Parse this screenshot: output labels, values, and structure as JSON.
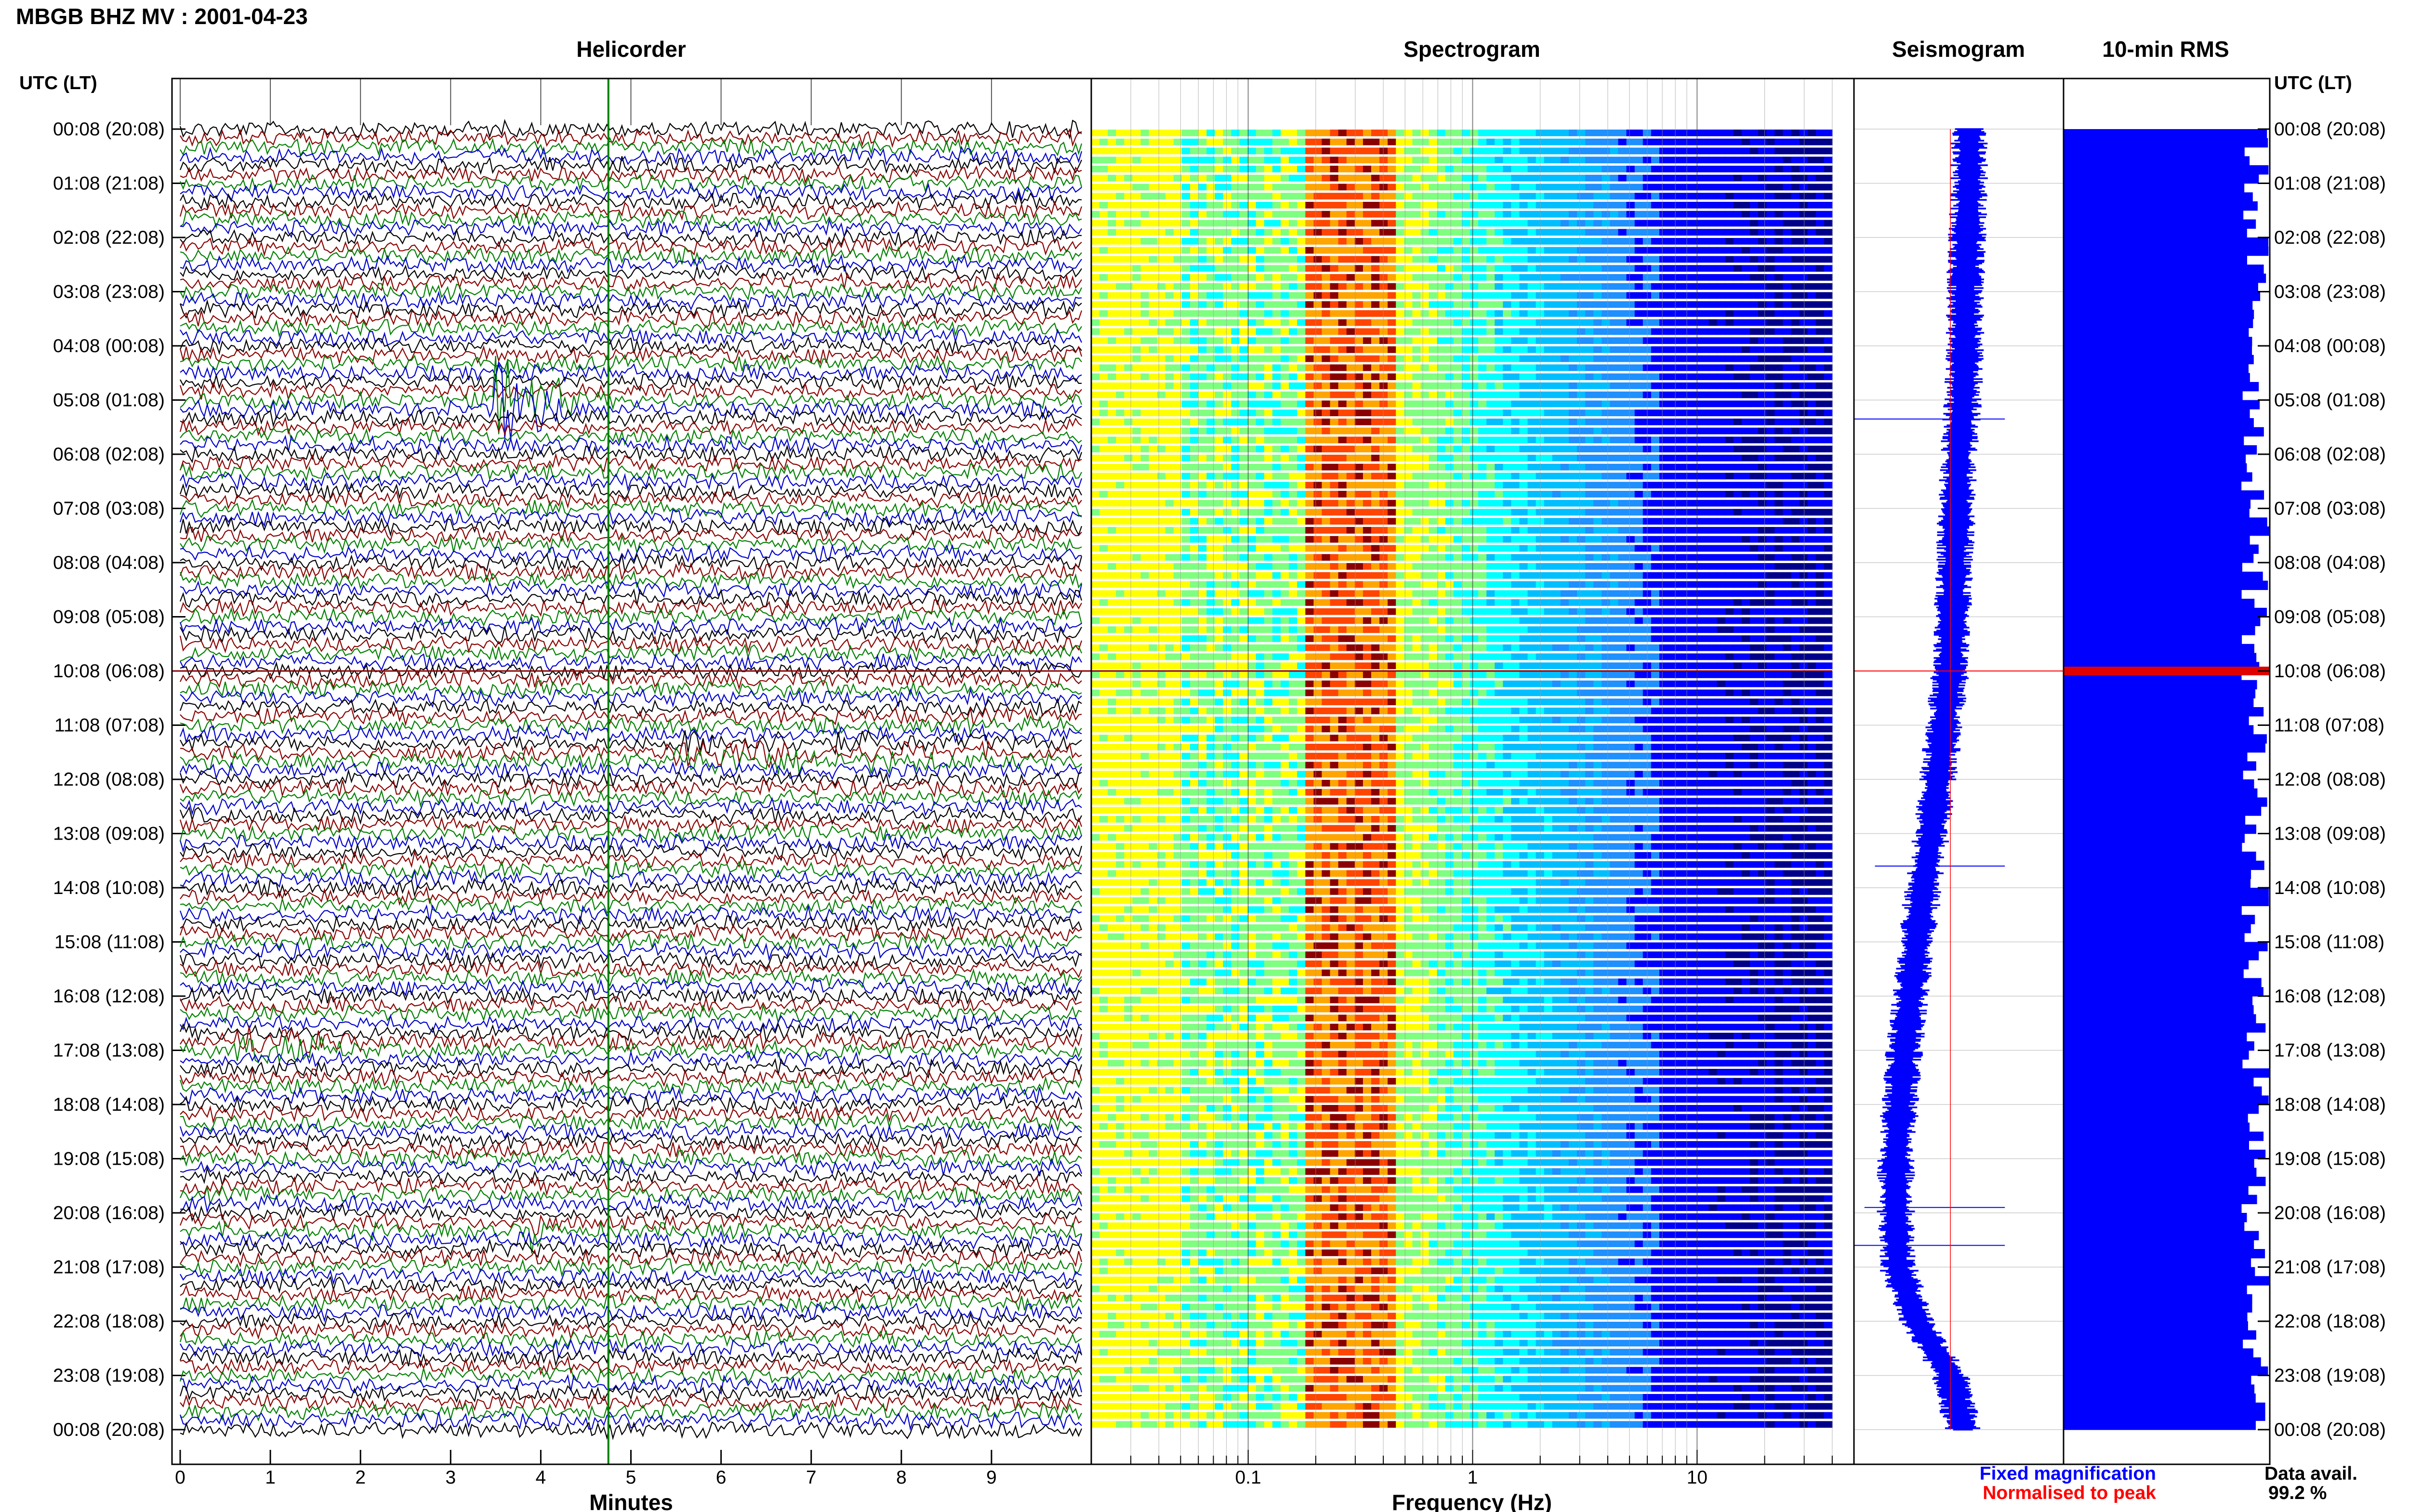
{
  "header": {
    "station_title": "MBGB BHZ MV : 2001-04-23",
    "time_axis_label": "UTC (LT)"
  },
  "panels": {
    "helicorder": "Helicorder",
    "spectrogram": "Spectrogram",
    "seismogram": "Seismogram",
    "rms": "10-min RMS"
  },
  "footer": {
    "fixed_magnification": "Fixed magnification",
    "normalised_to_peak": "Normalised to peak",
    "data_avail_label": "Data avail.",
    "data_avail_value": "99.2 %"
  },
  "colors": {
    "trace_cycle": [
      "#000000",
      "#8b0000",
      "#008000",
      "#0000cc"
    ],
    "fixed_magnification": "#0000ff",
    "normalised_to_peak": "#ff0000",
    "rms_bar": "#0000ff",
    "rms_peak_bar": "#e00000",
    "helicorder_marker": "#008000"
  },
  "chart_data": [
    {
      "type": "line",
      "title": "Helicorder",
      "xlabel": "Minutes",
      "x_ticks": [
        "0",
        "1",
        "2",
        "3",
        "4",
        "5",
        "6",
        "7",
        "8",
        "9"
      ],
      "xlim": [
        0,
        10
      ],
      "hour_labels_left": [
        "00:08 (20:08)",
        "01:08 (21:08)",
        "02:08 (22:08)",
        "03:08 (23:08)",
        "04:08 (00:08)",
        "05:08 (01:08)",
        "06:08 (02:08)",
        "07:08 (03:08)",
        "08:08 (04:08)",
        "09:08 (05:08)",
        "10:08 (06:08)",
        "11:08 (07:08)",
        "12:08 (08:08)",
        "13:08 (09:08)",
        "14:08 (10:08)",
        "15:08 (11:08)",
        "16:08 (12:08)",
        "17:08 (13:08)",
        "18:08 (14:08)",
        "19:08 (15:08)",
        "20:08 (16:08)",
        "21:08 (17:08)",
        "22:08 (18:08)",
        "23:08 (19:08)",
        "00:08 (20:08)"
      ],
      "hour_labels_right": [
        "00:08 (20:08)",
        "01:08 (21:08)",
        "02:08 (22:08)",
        "03:08 (23:08)",
        "04:08 (00:08)",
        "05:08 (01:08)",
        "06:08 (02:08)",
        "07:08 (03:08)",
        "08:08 (04:08)",
        "09:08 (05:08)",
        "10:08 (06:08)",
        "11:08 (07:08)",
        "12:08 (08:08)",
        "13:08 (09:08)",
        "14:08 (10:08)",
        "15:08 (11:08)",
        "16:08 (12:08)",
        "17:08 (13:08)",
        "18:08 (14:08)",
        "19:08 (15:08)",
        "20:08 (16:08)",
        "21:08 (17:08)",
        "22:08 (18:08)",
        "23:08 (19:08)",
        "00:08 (20:08)"
      ],
      "lines_per_hour": 6,
      "events": [
        {
          "hour": 5.1,
          "minute": 3.5,
          "duration_min": 1.0,
          "amplitude": 6
        },
        {
          "hour": 16.9,
          "minute": 0.6,
          "duration_min": 1.6,
          "amplitude": 1.6
        },
        {
          "hour": 11.5,
          "minute": 5.5,
          "duration_min": 4.0,
          "amplitude": 1.1
        },
        {
          "hour": 20.3,
          "minute": 3.9,
          "duration_min": 0.2,
          "amplitude": 2.5
        }
      ],
      "marker_minute": 4.75
    },
    {
      "type": "heatmap",
      "title": "Spectrogram",
      "xlabel": "Frequency (Hz)",
      "x_scale": "log",
      "xlim": [
        0.02,
        50
      ],
      "x_ticks": [
        "0.1",
        "1",
        "10"
      ],
      "data_xlim": [
        0.02,
        40
      ],
      "colormap": [
        "#00008b",
        "#0000ff",
        "#1e90ff",
        "#00bfff",
        "#00ffff",
        "#7fff7f",
        "#ffff00",
        "#ffa500",
        "#ff4500",
        "#8b0000"
      ]
    },
    {
      "type": "line",
      "title": "Seismogram",
      "description_legend": [
        "Fixed magnification",
        "Normalised to peak"
      ],
      "drift_rel": [
        0.55,
        0.55,
        0.54,
        0.53,
        0.53,
        0.52,
        0.5,
        0.49,
        0.48,
        0.47,
        0.46,
        0.43,
        0.4,
        0.37,
        0.33,
        0.3,
        0.27,
        0.24,
        0.22,
        0.2,
        0.2,
        0.21,
        0.3,
        0.46,
        0.52
      ]
    },
    {
      "type": "bar",
      "title": "10-min RMS",
      "peak_hour": 10.0,
      "relative_values_note": "near-constant RMS with small fluctuations"
    }
  ]
}
